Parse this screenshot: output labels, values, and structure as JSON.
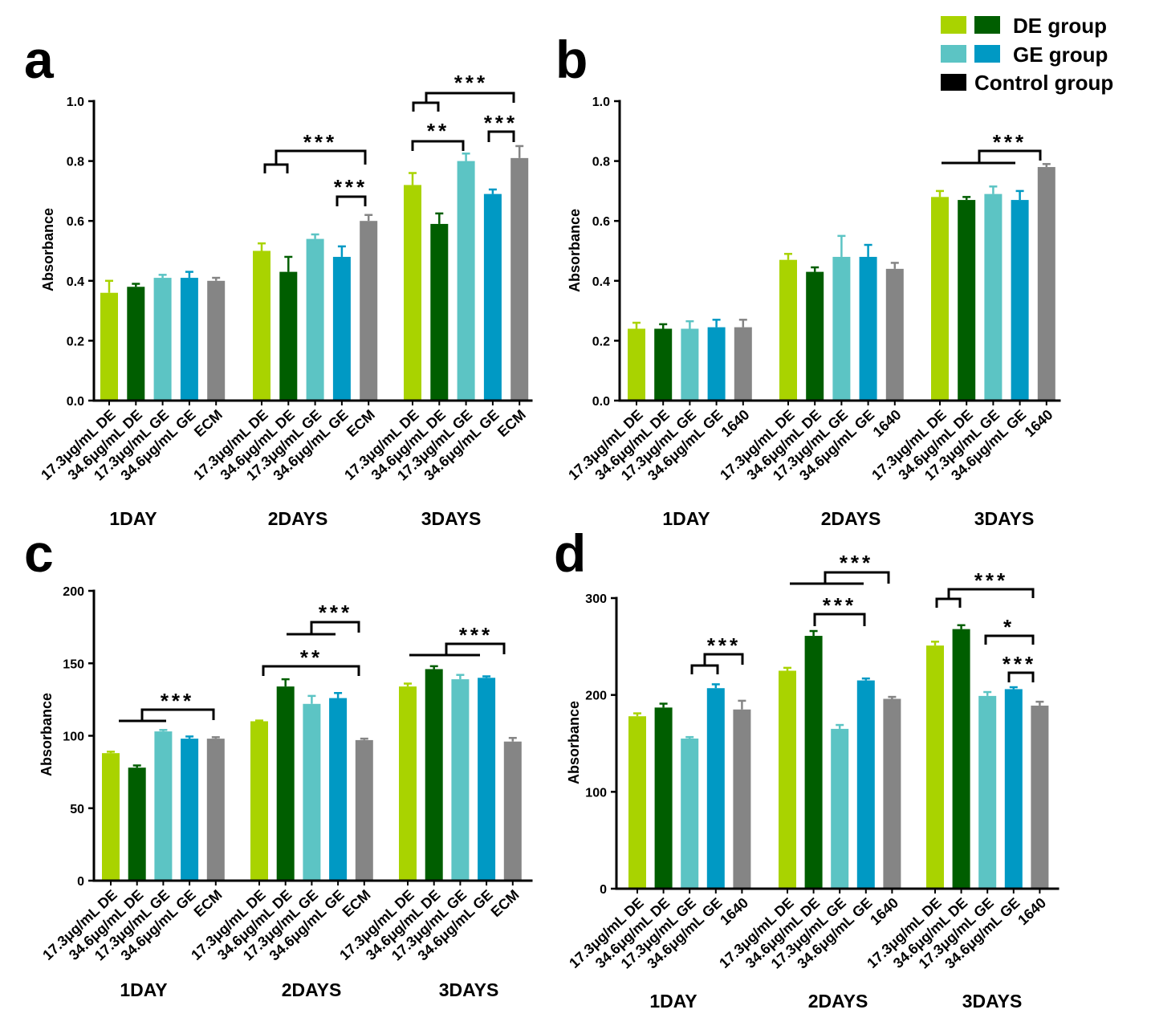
{
  "legend": {
    "items": [
      {
        "label": "DE group",
        "colors": [
          "#a9d300",
          "#005e00"
        ]
      },
      {
        "label": "GE group",
        "colors": [
          "#5cc4c4",
          "#0099c4"
        ]
      },
      {
        "label": "Control group",
        "colors": [
          "#000000"
        ]
      }
    ]
  },
  "chart_data": [
    {
      "panel": "a",
      "type": "bar",
      "ylabel": "Absorbance",
      "ylim": [
        0,
        1.0
      ],
      "yticks": [
        0,
        0.2,
        0.4,
        0.6,
        0.8,
        1.0
      ],
      "ytick_labels": [
        "0.0",
        "0.2",
        "0.4",
        "0.6",
        "0.8",
        "1.0"
      ],
      "groups": [
        "1DAY",
        "2DAYS",
        "3DAYS"
      ],
      "categories": [
        "17.3μg/mL DE",
        "34.6μg/mL DE",
        "17.3μg/mL GE",
        "34.6μg/mL GE",
        "ECM"
      ],
      "colors": [
        "#a9d300",
        "#005e00",
        "#5cc4c4",
        "#0099c4",
        "#858585"
      ],
      "values": [
        [
          0.36,
          0.38,
          0.41,
          0.41,
          0.4
        ],
        [
          0.5,
          0.43,
          0.54,
          0.48,
          0.6
        ],
        [
          0.72,
          0.59,
          0.8,
          0.69,
          0.81
        ]
      ],
      "errors": [
        [
          0.04,
          0.01,
          0.01,
          0.02,
          0.01
        ],
        [
          0.025,
          0.05,
          0.015,
          0.035,
          0.02
        ],
        [
          0.04,
          0.035,
          0.025,
          0.015,
          0.04
        ]
      ],
      "significance": [
        {
          "label": "***",
          "group": 1,
          "left": [
            0,
            1
          ],
          "right": [
            4
          ]
        },
        {
          "label": "***",
          "group": 1,
          "left": [
            3
          ],
          "right": [
            4
          ]
        },
        {
          "label": "***",
          "group": 2,
          "left": [
            0,
            1
          ],
          "right": [
            4
          ]
        },
        {
          "label": "**",
          "group": 2,
          "left": [
            0
          ],
          "right": [
            2
          ]
        },
        {
          "label": "***",
          "group": 2,
          "left": [
            3
          ],
          "right": [
            4
          ]
        }
      ]
    },
    {
      "panel": "b",
      "type": "bar",
      "ylabel": "Absorbance",
      "ylim": [
        0,
        1.0
      ],
      "yticks": [
        0,
        0.2,
        0.4,
        0.6,
        0.8,
        1.0
      ],
      "ytick_labels": [
        "0.0",
        "0.2",
        "0.4",
        "0.6",
        "0.8",
        "1.0"
      ],
      "groups": [
        "1DAY",
        "2DAYS",
        "3DAYS"
      ],
      "categories": [
        "17.3μg/mL DE",
        "34.6μg/mL DE",
        "17.3μg/mL GE",
        "34.6μg/mL GE",
        "1640"
      ],
      "colors": [
        "#a9d300",
        "#005e00",
        "#5cc4c4",
        "#0099c4",
        "#858585"
      ],
      "values": [
        [
          0.24,
          0.24,
          0.24,
          0.245,
          0.245
        ],
        [
          0.47,
          0.43,
          0.48,
          0.48,
          0.44
        ],
        [
          0.68,
          0.67,
          0.69,
          0.67,
          0.78
        ]
      ],
      "errors": [
        [
          0.02,
          0.015,
          0.025,
          0.025,
          0.025
        ],
        [
          0.02,
          0.015,
          0.07,
          0.04,
          0.02
        ],
        [
          0.02,
          0.01,
          0.025,
          0.03,
          0.01
        ]
      ],
      "significance": [
        {
          "label": "***",
          "group": 2,
          "left": [
            0,
            1,
            2,
            3
          ],
          "right": [
            4
          ]
        }
      ]
    },
    {
      "panel": "c",
      "type": "bar",
      "ylabel": "Absorbance",
      "ylim": [
        0,
        200
      ],
      "yticks": [
        0,
        50,
        100,
        150,
        200
      ],
      "ytick_labels": [
        "0",
        "50",
        "100",
        "150",
        "200"
      ],
      "groups": [
        "1DAY",
        "2DAYS",
        "3DAYS"
      ],
      "categories": [
        "17.3μg/mL DE",
        "34.6μg/mL DE",
        "17.3μg/mL GE",
        "34.6μg/mL GE",
        "ECM"
      ],
      "colors": [
        "#a9d300",
        "#005e00",
        "#5cc4c4",
        "#0099c4",
        "#858585"
      ],
      "values": [
        [
          88,
          78,
          103,
          98,
          98
        ],
        [
          110,
          134,
          122,
          126,
          97
        ],
        [
          134,
          146,
          139,
          140,
          96
        ]
      ],
      "errors": [
        [
          1,
          1.5,
          1,
          1.5,
          1
        ],
        [
          0.5,
          5,
          5.5,
          3.5,
          1
        ],
        [
          2,
          2,
          3,
          1,
          2.5
        ]
      ],
      "significance": [
        {
          "label": "***",
          "group": 0,
          "left": [
            0,
            1,
            2,
            3
          ],
          "right": [
            4
          ]
        },
        {
          "label": "***",
          "group": 1,
          "left": [
            1,
            2,
            3
          ],
          "right": [
            4
          ]
        },
        {
          "label": "**",
          "group": 1,
          "left": [
            0
          ],
          "right": [
            4
          ]
        },
        {
          "label": "***",
          "group": 2,
          "left": [
            0,
            1,
            2,
            3
          ],
          "right": [
            4
          ]
        }
      ]
    },
    {
      "panel": "d",
      "type": "bar",
      "ylabel": "Absorbance",
      "ylim": [
        0,
        300
      ],
      "yticks": [
        0,
        100,
        200,
        300
      ],
      "ytick_labels": [
        "0",
        "100",
        "200",
        "300"
      ],
      "groups": [
        "1DAY",
        "2DAYS",
        "3DAYS"
      ],
      "categories": [
        "17.3μg/mL DE",
        "34.6μg/mL DE",
        "17.3μg/mL GE",
        "34.6μg/mL GE",
        "1640"
      ],
      "colors": [
        "#a9d300",
        "#005e00",
        "#5cc4c4",
        "#0099c4",
        "#858585"
      ],
      "values": [
        [
          178,
          187,
          155,
          207,
          185
        ],
        [
          225,
          261,
          165,
          215,
          196
        ],
        [
          251,
          268,
          199,
          206,
          189
        ]
      ],
      "errors": [
        [
          3,
          4,
          1.5,
          4,
          9
        ],
        [
          3,
          5,
          4,
          2,
          2
        ],
        [
          4,
          4,
          4,
          2,
          4
        ]
      ],
      "significance": [
        {
          "label": "***",
          "group": 0,
          "left": [
            2,
            3
          ],
          "right": [
            4
          ]
        },
        {
          "label": "***",
          "group": 1,
          "left": [
            0,
            1,
            2,
            3
          ],
          "right": [
            4
          ]
        },
        {
          "label": "***",
          "group": 1,
          "left": [
            1
          ],
          "right": [
            3
          ]
        },
        {
          "label": "***",
          "group": 2,
          "left": [
            0,
            1
          ],
          "right": [
            4
          ]
        },
        {
          "label": "*",
          "group": 2,
          "left": [
            2
          ],
          "right": [
            4
          ]
        },
        {
          "label": "***",
          "group": 2,
          "left": [
            3
          ],
          "right": [
            4
          ]
        }
      ]
    }
  ]
}
